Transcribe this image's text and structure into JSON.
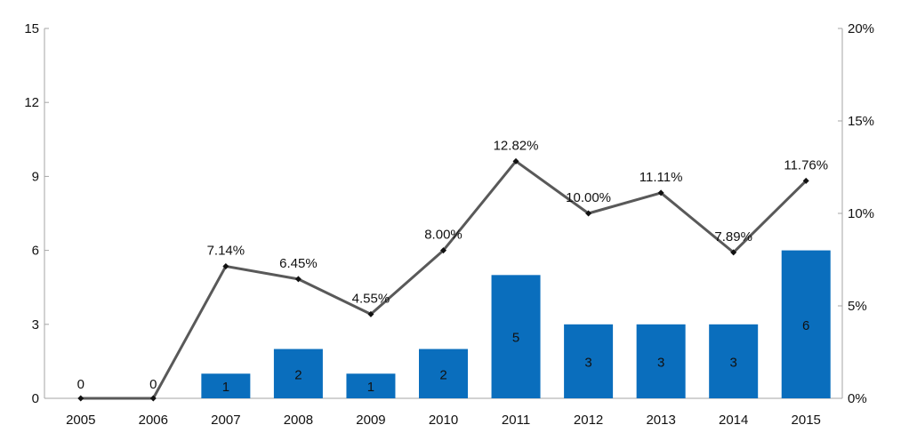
{
  "chart_data": {
    "type": "bar",
    "categories": [
      "2005",
      "2006",
      "2007",
      "2008",
      "2009",
      "2010",
      "2011",
      "2012",
      "2013",
      "2014",
      "2015"
    ],
    "series": [
      {
        "type": "bar",
        "axis": "left",
        "values": [
          0,
          0,
          1,
          2,
          1,
          2,
          5,
          3,
          3,
          3,
          6
        ],
        "labels": [
          "0",
          "0",
          "1",
          "2",
          "1",
          "2",
          "5",
          "3",
          "3",
          "3",
          "6"
        ],
        "color": "#0a6ebd"
      },
      {
        "type": "line",
        "axis": "right",
        "values": [
          0,
          0,
          7.14,
          6.45,
          4.55,
          8.0,
          12.82,
          10.0,
          11.11,
          7.89,
          11.76
        ],
        "labels": [
          "",
          "",
          "7.14%",
          "6.45%",
          "4.55%",
          "8.00%",
          "12.82%",
          "10.00%",
          "11.11%",
          "7.89%",
          "11.76%"
        ],
        "color": "#595959"
      }
    ],
    "y_left": {
      "ylim": [
        0,
        15
      ],
      "ticks": [
        "0",
        "3",
        "6",
        "9",
        "12",
        "15"
      ]
    },
    "y_right": {
      "ylim": [
        0,
        20
      ],
      "ticks": [
        "0%",
        "5%",
        "10%",
        "15%",
        "20%"
      ]
    },
    "title": "",
    "xlabel": "",
    "ylabel": "",
    "grid": false,
    "legend": "none"
  }
}
